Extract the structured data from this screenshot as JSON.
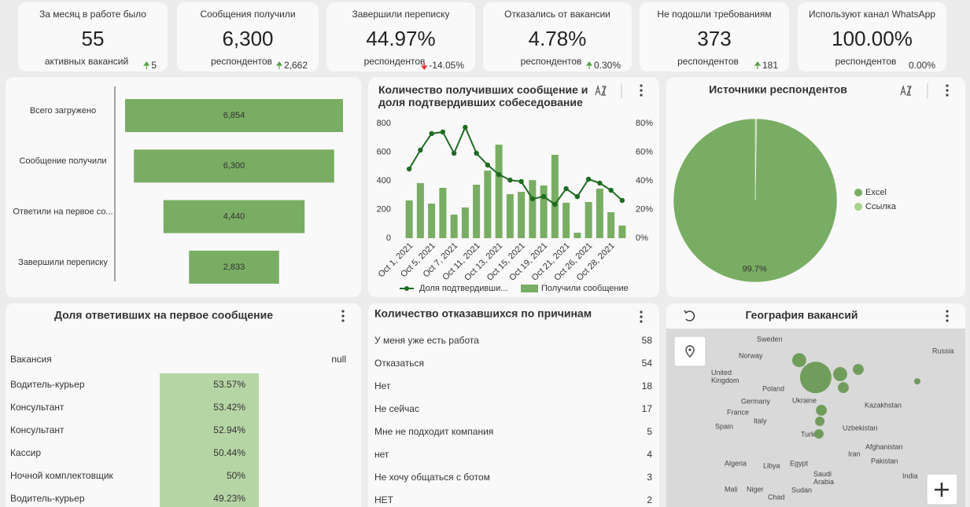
{
  "kpis": [
    {
      "title": "За месяц в работе было",
      "value": "55",
      "subtitle": "активных вакансий",
      "delta": "5",
      "trend": "up"
    },
    {
      "title": "Сообщения получили",
      "value": "6,300",
      "subtitle": "респондентов",
      "delta": "2,662",
      "trend": "up"
    },
    {
      "title": "Завершили переписку",
      "value": "44.97%",
      "subtitle": "респондентов",
      "delta": "-14.05%",
      "trend": "down"
    },
    {
      "title": "Отказались от вакансии",
      "value": "4.78%",
      "subtitle": "респондентов",
      "delta": "0.30%",
      "trend": "up"
    },
    {
      "title": "Не подошли требованиям",
      "value": "373",
      "subtitle": "респондентов",
      "delta": "181",
      "trend": "up"
    },
    {
      "title": "Используют канал WhatsApp",
      "value": "100.00%",
      "subtitle": "респондентов",
      "delta": "0.00%",
      "trend": "flat"
    }
  ],
  "chart_data": [
    {
      "type": "funnel",
      "categories": [
        "Всего загружено",
        "Сообщение получили",
        "Ответили на первое со...",
        "Завершили переписку"
      ],
      "values": [
        6854,
        6300,
        4440,
        2833
      ],
      "value_labels": [
        "6,854",
        "6,300",
        "4,440",
        "2,833"
      ],
      "color": "#79ad63"
    },
    {
      "type": "combo",
      "title": "Количество получивших сообщение и доля подтвердивших собеседование",
      "categories": [
        "Oct 1, 2021",
        null,
        "Oct 5, 2021",
        null,
        "Oct 7, 2021",
        null,
        "Oct 11, 2021",
        null,
        "Oct 13, 2021",
        null,
        "Oct 15, 2021",
        null,
        "Oct 19, 2021",
        null,
        "Oct 21, 2021",
        null,
        "Oct 26, 2021",
        null,
        "Oct 28, 2021",
        null
      ],
      "series": [
        {
          "name": "Доля подтвердивши...",
          "type": "line",
          "axis": "y2",
          "color": "#1f6b22",
          "values": [
            48.2,
            61.4,
            72.9,
            74.0,
            59.2,
            77.3,
            59.2,
            51.0,
            44.4,
            40.5,
            39.5,
            27.4,
            29.0,
            23.6,
            34.5,
            29.0,
            41.1,
            38.4,
            33.4,
            26.3
          ]
        },
        {
          "name": "Получили сообщение",
          "type": "bar",
          "color": "#79ad63",
          "values": [
            263,
            384,
            241,
            351,
            164,
            214,
            373,
            471,
            652,
            307,
            323,
            405,
            367,
            581,
            247,
            38,
            252,
            345,
            181,
            88
          ]
        }
      ],
      "ylim": [
        0,
        800
      ],
      "yticks": [
        0,
        200,
        400,
        600,
        800
      ],
      "y2lim": [
        0,
        80
      ],
      "y2ticks": [
        {
          "value": 0,
          "label": "0%"
        },
        {
          "value": 20,
          "label": "20%"
        },
        {
          "value": 40,
          "label": "40%"
        },
        {
          "value": 60,
          "label": "60%"
        },
        {
          "value": 80,
          "label": "80%"
        }
      ]
    },
    {
      "type": "pie",
      "title": "Источники респондентов",
      "categories": [
        "Excel",
        "Ссылка"
      ],
      "values": [
        99.7,
        0.3
      ],
      "value_labels": [
        "99.7%",
        null
      ],
      "colors": [
        "#79ad63",
        "#a9d18e"
      ]
    }
  ],
  "response_table": {
    "title": "Доля ответивших на первое сообщение",
    "columns": [
      "Вакансия",
      "null"
    ],
    "rows": [
      [
        "Водитель-курьер",
        "53.57%"
      ],
      [
        "Консультант",
        "53.42%"
      ],
      [
        "Консультант",
        "52.94%"
      ],
      [
        "Кассир",
        "50.44%"
      ],
      [
        "Ночной комплектовщик",
        "50%"
      ],
      [
        "Водитель-курьер",
        "49.23%"
      ]
    ],
    "bar_color": "#b6d5a5"
  },
  "refusal_table": {
    "title": "Количество отказавшихся по причинам",
    "rows": [
      [
        "У меня уже есть работа",
        58
      ],
      [
        "Отказаться",
        54
      ],
      [
        "Нет",
        18
      ],
      [
        "Не сейчас",
        17
      ],
      [
        "Мне не подходит компания",
        5
      ],
      [
        "нет",
        4
      ],
      [
        "Не хочу общаться с ботом",
        3
      ],
      [
        "НЕТ",
        2
      ]
    ]
  },
  "map": {
    "title": "География вакансий",
    "labels": [
      "Sweden",
      "Norway",
      "Russia",
      "United Kingdom",
      "Poland",
      "Germany",
      "Ukraine",
      "Kazakhstan",
      "France",
      "Italy",
      "Spain",
      "Turkey",
      "Uzbekistan",
      "Afghanistan",
      "Iran",
      "Pakistan",
      "Algeria",
      "Libya",
      "Egypt",
      "Saudi Arabia",
      "India",
      "Mali",
      "Niger",
      "Chad",
      "Sudan"
    ],
    "points": [
      {
        "lon": 30.1,
        "lat": 61.7,
        "size": 20
      },
      {
        "lon": 37.4,
        "lat": 55.9,
        "size": 100
      },
      {
        "lon": 48.2,
        "lat": 57.0,
        "size": 20
      },
      {
        "lon": 56.2,
        "lat": 58.6,
        "size": 12
      },
      {
        "lon": 49.6,
        "lat": 52.5,
        "size": 12
      },
      {
        "lon": 82.3,
        "lat": 54.6,
        "size": 4
      },
      {
        "lon": 39.9,
        "lat": 44.9,
        "size": 12
      },
      {
        "lon": 39.2,
        "lat": 41.2,
        "size": 9
      },
      {
        "lon": 38.8,
        "lat": 37.0,
        "size": 9
      }
    ],
    "color": "#6b9a55"
  }
}
